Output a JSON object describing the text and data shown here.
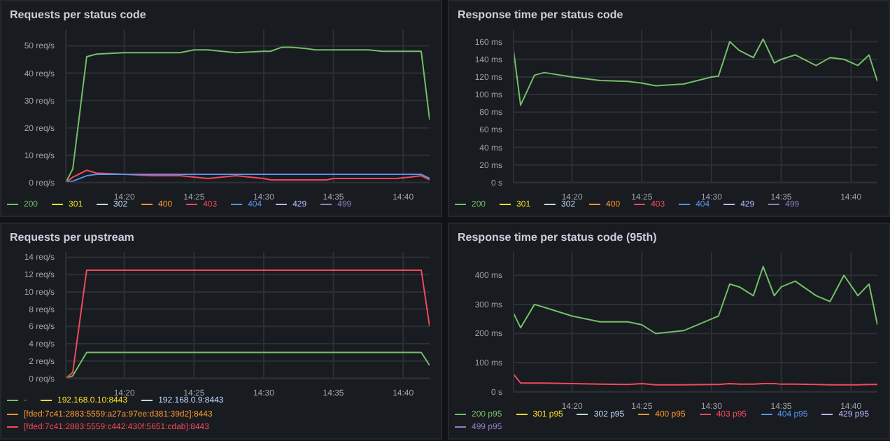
{
  "chart_data": [
    {
      "type": "line",
      "title": "Requests per status code",
      "x": [
        14.2633,
        14.2717,
        14.2883,
        14.3,
        14.3333,
        14.3667,
        14.4,
        14.4167,
        14.4333,
        14.4667,
        14.5,
        14.5083,
        14.5217,
        14.5333,
        14.55,
        14.5617,
        14.575,
        14.5833,
        14.6,
        14.625,
        14.6417,
        14.6583,
        14.675,
        14.6883,
        14.6983
      ],
      "xlim": [
        14.2633,
        14.6983
      ],
      "xticks": [
        {
          "value": 14.3333,
          "label": "14:20"
        },
        {
          "value": 14.4167,
          "label": "14:25"
        },
        {
          "value": 14.5,
          "label": "14:30"
        },
        {
          "value": 14.5833,
          "label": "14:35"
        },
        {
          "value": 14.6667,
          "label": "14:40"
        }
      ],
      "ylim": [
        0,
        56
      ],
      "yticks": [
        {
          "value": 0,
          "label": "0 req/s"
        },
        {
          "value": 10,
          "label": "10 req/s"
        },
        {
          "value": 20,
          "label": "20 req/s"
        },
        {
          "value": 30,
          "label": "30 req/s"
        },
        {
          "value": 40,
          "label": "40 req/s"
        },
        {
          "value": 50,
          "label": "50 req/s"
        }
      ],
      "grid": true,
      "legend": "bottom",
      "series": [
        {
          "name": "200",
          "color": "#73bf69",
          "values": [
            0,
            5,
            46,
            47,
            47.5,
            47.5,
            47.5,
            48.5,
            48.5,
            47.5,
            48,
            48,
            49.5,
            49.5,
            49,
            48.5,
            48.5,
            48.5,
            48.5,
            48.5,
            48,
            48,
            48,
            48,
            23
          ]
        },
        {
          "name": "301",
          "color": "#fade2a",
          "values": [
            null,
            null,
            null,
            null,
            null,
            null,
            null,
            null,
            null,
            null,
            null,
            null,
            null,
            null,
            null,
            null,
            null,
            null,
            null,
            null,
            null,
            null,
            null,
            null,
            null
          ]
        },
        {
          "name": "302",
          "color": "#c0d8ff",
          "values": [
            null,
            null,
            null,
            null,
            null,
            null,
            null,
            null,
            null,
            null,
            null,
            null,
            null,
            null,
            null,
            null,
            null,
            null,
            null,
            null,
            null,
            null,
            null,
            null,
            null
          ]
        },
        {
          "name": "400",
          "color": "#ff9830",
          "values": [
            null,
            null,
            null,
            null,
            null,
            null,
            null,
            null,
            null,
            null,
            null,
            null,
            null,
            null,
            null,
            null,
            null,
            null,
            null,
            null,
            null,
            null,
            null,
            null,
            null
          ]
        },
        {
          "name": "403",
          "color": "#f2495c",
          "values": [
            0,
            2,
            4.5,
            3.5,
            3,
            2.5,
            2.5,
            2,
            1.5,
            2.5,
            1.5,
            1,
            1,
            1,
            1,
            1,
            1,
            1.5,
            1.5,
            1.5,
            1.5,
            1.5,
            2,
            2.5,
            1
          ]
        },
        {
          "name": "404",
          "color": "#5794f2",
          "values": [
            0,
            0.5,
            2.5,
            3,
            3,
            3,
            3,
            3,
            3,
            3,
            3,
            3,
            3,
            3,
            3,
            3,
            3,
            3,
            3,
            3,
            3,
            3,
            3,
            3,
            1.5
          ]
        },
        {
          "name": "429",
          "color": "#b8b8ff",
          "values": [
            null,
            null,
            null,
            null,
            null,
            null,
            null,
            null,
            null,
            null,
            null,
            null,
            null,
            null,
            null,
            null,
            null,
            null,
            null,
            null,
            null,
            null,
            null,
            null,
            null
          ]
        },
        {
          "name": "499",
          "color": "#8f80c4",
          "values": [
            null,
            null,
            null,
            null,
            null,
            null,
            null,
            null,
            null,
            null,
            null,
            null,
            null,
            null,
            null,
            null,
            null,
            null,
            null,
            null,
            null,
            null,
            null,
            null,
            null
          ]
        }
      ]
    },
    {
      "type": "line",
      "title": "Response time per status code",
      "x": [
        14.2633,
        14.2717,
        14.2883,
        14.3,
        14.3333,
        14.3667,
        14.4,
        14.4167,
        14.4333,
        14.4667,
        14.5,
        14.5083,
        14.5217,
        14.5333,
        14.55,
        14.5617,
        14.575,
        14.5833,
        14.6,
        14.625,
        14.6417,
        14.6583,
        14.675,
        14.6883,
        14.6983
      ],
      "xlim": [
        14.2633,
        14.6983
      ],
      "xticks": [
        {
          "value": 14.3333,
          "label": "14:20"
        },
        {
          "value": 14.4167,
          "label": "14:25"
        },
        {
          "value": 14.5,
          "label": "14:30"
        },
        {
          "value": 14.5833,
          "label": "14:35"
        },
        {
          "value": 14.6667,
          "label": "14:40"
        }
      ],
      "ylim": [
        0,
        174
      ],
      "yticks": [
        {
          "value": 0,
          "label": "0 s"
        },
        {
          "value": 20,
          "label": "20 ms"
        },
        {
          "value": 40,
          "label": "40 ms"
        },
        {
          "value": 60,
          "label": "60 ms"
        },
        {
          "value": 80,
          "label": "80 ms"
        },
        {
          "value": 100,
          "label": "100 ms"
        },
        {
          "value": 120,
          "label": "120 ms"
        },
        {
          "value": 140,
          "label": "140 ms"
        },
        {
          "value": 160,
          "label": "160 ms"
        }
      ],
      "grid": true,
      "legend": "bottom",
      "series": [
        {
          "name": "200",
          "color": "#73bf69",
          "values": [
            150,
            88,
            122,
            125,
            120,
            116,
            115,
            113,
            110,
            112,
            120,
            121,
            160,
            150,
            142,
            163,
            136,
            140,
            145,
            133,
            142,
            140,
            133,
            145,
            115
          ]
        },
        {
          "name": "301",
          "color": "#fade2a",
          "values": [
            null,
            null,
            null,
            null,
            null,
            null,
            null,
            null,
            null,
            null,
            null,
            null,
            null,
            null,
            null,
            null,
            null,
            null,
            null,
            null,
            null,
            null,
            null,
            null,
            null
          ]
        },
        {
          "name": "302",
          "color": "#c0d8ff",
          "values": [
            null,
            null,
            null,
            null,
            null,
            null,
            null,
            null,
            null,
            null,
            null,
            null,
            null,
            null,
            null,
            null,
            null,
            null,
            null,
            null,
            null,
            null,
            null,
            null,
            null
          ]
        },
        {
          "name": "400",
          "color": "#ff9830",
          "values": [
            null,
            null,
            null,
            null,
            null,
            null,
            null,
            null,
            null,
            null,
            null,
            null,
            null,
            null,
            null,
            null,
            null,
            null,
            null,
            null,
            null,
            null,
            null,
            null,
            null
          ]
        },
        {
          "name": "403",
          "color": "#f2495c",
          "values": [
            null,
            null,
            null,
            null,
            null,
            null,
            null,
            null,
            null,
            null,
            null,
            null,
            null,
            null,
            null,
            null,
            null,
            null,
            null,
            null,
            null,
            null,
            null,
            null,
            null
          ]
        },
        {
          "name": "404",
          "color": "#5794f2",
          "values": [
            null,
            null,
            null,
            null,
            null,
            null,
            null,
            null,
            null,
            null,
            null,
            null,
            null,
            null,
            null,
            null,
            null,
            null,
            null,
            null,
            null,
            null,
            null,
            null,
            null
          ]
        },
        {
          "name": "429",
          "color": "#b8b8ff",
          "values": [
            null,
            null,
            null,
            null,
            null,
            null,
            null,
            null,
            null,
            null,
            null,
            null,
            null,
            null,
            null,
            null,
            null,
            null,
            null,
            null,
            null,
            null,
            null,
            null,
            null
          ]
        },
        {
          "name": "499",
          "color": "#8f80c4",
          "values": [
            null,
            null,
            null,
            null,
            null,
            null,
            null,
            null,
            null,
            null,
            null,
            null,
            null,
            null,
            null,
            null,
            null,
            null,
            null,
            null,
            null,
            null,
            null,
            null,
            null
          ]
        }
      ]
    },
    {
      "type": "line",
      "title": "Requests per upstream",
      "x": [
        14.2633,
        14.2717,
        14.2883,
        14.3,
        14.3333,
        14.3667,
        14.4,
        14.4167,
        14.4333,
        14.4667,
        14.5,
        14.5083,
        14.5217,
        14.5333,
        14.55,
        14.5617,
        14.575,
        14.5833,
        14.6,
        14.625,
        14.6417,
        14.6583,
        14.675,
        14.6883,
        14.6983
      ],
      "xlim": [
        14.2633,
        14.6983
      ],
      "xticks": [
        {
          "value": 14.3333,
          "label": "14:20"
        },
        {
          "value": 14.4167,
          "label": "14:25"
        },
        {
          "value": 14.5,
          "label": "14:30"
        },
        {
          "value": 14.5833,
          "label": "14:35"
        },
        {
          "value": 14.6667,
          "label": "14:40"
        }
      ],
      "ylim": [
        0,
        14.6
      ],
      "yticks": [
        {
          "value": 0,
          "label": "0 req/s"
        },
        {
          "value": 2,
          "label": "2 req/s"
        },
        {
          "value": 4,
          "label": "4 req/s"
        },
        {
          "value": 6,
          "label": "6 req/s"
        },
        {
          "value": 8,
          "label": "8 req/s"
        },
        {
          "value": 10,
          "label": "10 req/s"
        },
        {
          "value": 12,
          "label": "12 req/s"
        },
        {
          "value": 14,
          "label": "14 req/s"
        }
      ],
      "grid": true,
      "legend": "bottom",
      "series": [
        {
          "name": "-",
          "color": "#73bf69",
          "values": [
            0,
            0.3,
            3,
            3,
            3,
            3,
            3,
            3,
            3,
            3,
            3,
            3,
            3,
            3,
            3,
            3,
            3,
            3,
            3,
            3,
            3,
            3,
            3,
            3,
            1.5
          ]
        },
        {
          "name": "192.168.0.10:8443",
          "color": "#fade2a",
          "values": [
            null,
            null,
            null,
            null,
            null,
            null,
            null,
            null,
            null,
            null,
            null,
            null,
            null,
            null,
            null,
            null,
            null,
            null,
            null,
            null,
            null,
            null,
            null,
            null,
            null
          ]
        },
        {
          "name": "192.168.0.9:8443",
          "color": "#c0d8ff",
          "values": [
            null,
            null,
            null,
            null,
            null,
            null,
            null,
            null,
            null,
            null,
            null,
            null,
            null,
            null,
            null,
            null,
            null,
            null,
            null,
            null,
            null,
            null,
            null,
            null,
            null
          ]
        },
        {
          "name": "[fded:7c41:2883:5559:a27a:97ee:d381:39d2]:8443",
          "color": "#ff9830",
          "values": [
            null,
            null,
            null,
            null,
            null,
            null,
            null,
            null,
            null,
            null,
            null,
            null,
            null,
            null,
            null,
            null,
            null,
            null,
            null,
            null,
            null,
            null,
            null,
            null,
            null
          ]
        },
        {
          "name": "[fded:7c41:2883:5559:c442:430f:5651:cdab]:8443",
          "color": "#f2495c",
          "values": [
            0,
            0.7,
            12.5,
            12.5,
            12.5,
            12.5,
            12.5,
            12.5,
            12.5,
            12.5,
            12.5,
            12.5,
            12.5,
            12.5,
            12.5,
            12.5,
            12.5,
            12.5,
            12.5,
            12.5,
            12.5,
            12.5,
            12.5,
            12.5,
            6
          ]
        }
      ]
    },
    {
      "type": "line",
      "title": "Response time per status code (95th)",
      "x": [
        14.2633,
        14.2717,
        14.2883,
        14.3,
        14.3333,
        14.3667,
        14.4,
        14.4167,
        14.4333,
        14.4667,
        14.5,
        14.5083,
        14.5217,
        14.5333,
        14.55,
        14.5617,
        14.575,
        14.5833,
        14.6,
        14.625,
        14.6417,
        14.6583,
        14.675,
        14.6883,
        14.6983
      ],
      "xlim": [
        14.2633,
        14.6983
      ],
      "xticks": [
        {
          "value": 14.3333,
          "label": "14:20"
        },
        {
          "value": 14.4167,
          "label": "14:25"
        },
        {
          "value": 14.5,
          "label": "14:30"
        },
        {
          "value": 14.5833,
          "label": "14:35"
        },
        {
          "value": 14.6667,
          "label": "14:40"
        }
      ],
      "ylim": [
        0,
        480
      ],
      "yticks": [
        {
          "value": 0,
          "label": "0 s"
        },
        {
          "value": 100,
          "label": "100 ms"
        },
        {
          "value": 200,
          "label": "200 ms"
        },
        {
          "value": 300,
          "label": "300 ms"
        },
        {
          "value": 400,
          "label": "400 ms"
        }
      ],
      "grid": true,
      "legend": "bottom",
      "series": [
        {
          "name": "200 p95",
          "color": "#73bf69",
          "values": [
            270,
            220,
            300,
            290,
            260,
            240,
            240,
            230,
            200,
            210,
            250,
            260,
            370,
            360,
            330,
            430,
            330,
            360,
            380,
            330,
            310,
            400,
            330,
            370,
            230
          ]
        },
        {
          "name": "301 p95",
          "color": "#fade2a",
          "values": [
            null,
            null,
            null,
            null,
            null,
            null,
            null,
            null,
            null,
            null,
            null,
            null,
            null,
            null,
            null,
            null,
            null,
            null,
            null,
            null,
            null,
            null,
            null,
            null,
            null
          ]
        },
        {
          "name": "302 p95",
          "color": "#c0d8ff",
          "values": [
            null,
            null,
            null,
            null,
            null,
            null,
            null,
            null,
            null,
            null,
            null,
            null,
            null,
            null,
            null,
            null,
            null,
            null,
            null,
            null,
            null,
            null,
            null,
            null,
            null
          ]
        },
        {
          "name": "400 p95",
          "color": "#ff9830",
          "values": [
            null,
            null,
            null,
            null,
            null,
            null,
            null,
            null,
            null,
            null,
            null,
            null,
            null,
            null,
            null,
            null,
            null,
            null,
            null,
            null,
            null,
            null,
            null,
            null,
            null
          ]
        },
        {
          "name": "403 p95",
          "color": "#f2495c",
          "values": [
            60,
            30,
            30,
            30,
            28,
            26,
            25,
            28,
            24,
            24,
            25,
            25,
            28,
            26,
            26,
            28,
            28,
            26,
            26,
            25,
            24,
            24,
            24,
            25,
            25
          ]
        },
        {
          "name": "404 p95",
          "color": "#5794f2",
          "values": [
            null,
            null,
            null,
            null,
            null,
            null,
            null,
            null,
            null,
            null,
            null,
            null,
            null,
            null,
            null,
            null,
            null,
            null,
            null,
            null,
            null,
            null,
            null,
            null,
            null
          ]
        },
        {
          "name": "429 p95",
          "color": "#b8b8ff",
          "values": [
            null,
            null,
            null,
            null,
            null,
            null,
            null,
            null,
            null,
            null,
            null,
            null,
            null,
            null,
            null,
            null,
            null,
            null,
            null,
            null,
            null,
            null,
            null,
            null,
            null
          ]
        },
        {
          "name": "499 p95",
          "color": "#8f80c4",
          "values": [
            null,
            null,
            null,
            null,
            null,
            null,
            null,
            null,
            null,
            null,
            null,
            null,
            null,
            null,
            null,
            null,
            null,
            null,
            null,
            null,
            null,
            null,
            null,
            null,
            null
          ]
        }
      ]
    }
  ]
}
